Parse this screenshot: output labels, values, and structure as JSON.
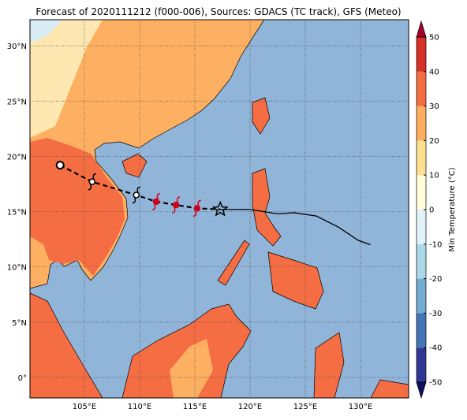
{
  "title": "Forecast of 2020111212 (f000-006), Sources: GDACS (TC track), GFS (Meteo)",
  "map": {
    "lon_ticks": [
      {
        "value": 105,
        "label": "105°E"
      },
      {
        "value": 110,
        "label": "110°E"
      },
      {
        "value": 115,
        "label": "115°E"
      },
      {
        "value": 120,
        "label": "120°E"
      },
      {
        "value": 125,
        "label": "125°E"
      },
      {
        "value": 130,
        "label": "130°E"
      }
    ],
    "lat_ticks": [
      {
        "value": 0,
        "label": "0°"
      },
      {
        "value": 5,
        "label": "5°N"
      },
      {
        "value": 10,
        "label": "10°N"
      },
      {
        "value": 15,
        "label": "15°N"
      },
      {
        "value": 20,
        "label": "20°N"
      },
      {
        "value": 25,
        "label": "25°N"
      },
      {
        "value": 30,
        "label": "30°N"
      }
    ],
    "tc_track": {
      "lon": [
        102.8,
        105.7,
        109.7,
        111.5,
        113.3,
        115.2,
        117.3
      ],
      "lat": [
        19.2,
        17.7,
        16.5,
        15.9,
        15.6,
        15.3,
        15.2
      ]
    },
    "gfs_track": {
      "lon": [
        117.3,
        120,
        122.5,
        124,
        126,
        128,
        129.8,
        130.9
      ],
      "lat": [
        15.2,
        15.2,
        14.8,
        14.9,
        14.6,
        13.6,
        12.4,
        12
      ]
    }
  },
  "colorbar": {
    "label": "Min Temperature (°C)",
    "ticks": [
      -50,
      -40,
      -30,
      -20,
      -10,
      0,
      10,
      20,
      30,
      40,
      50
    ],
    "colors": [
      "#313695",
      "#4575b4",
      "#74add1",
      "#abd9e9",
      "#e0f3f8",
      "#fffed8",
      "#fee090",
      "#fdae61",
      "#f46d43",
      "#d73027"
    ],
    "under_color": "#101060",
    "over_color": "#a50026"
  }
}
